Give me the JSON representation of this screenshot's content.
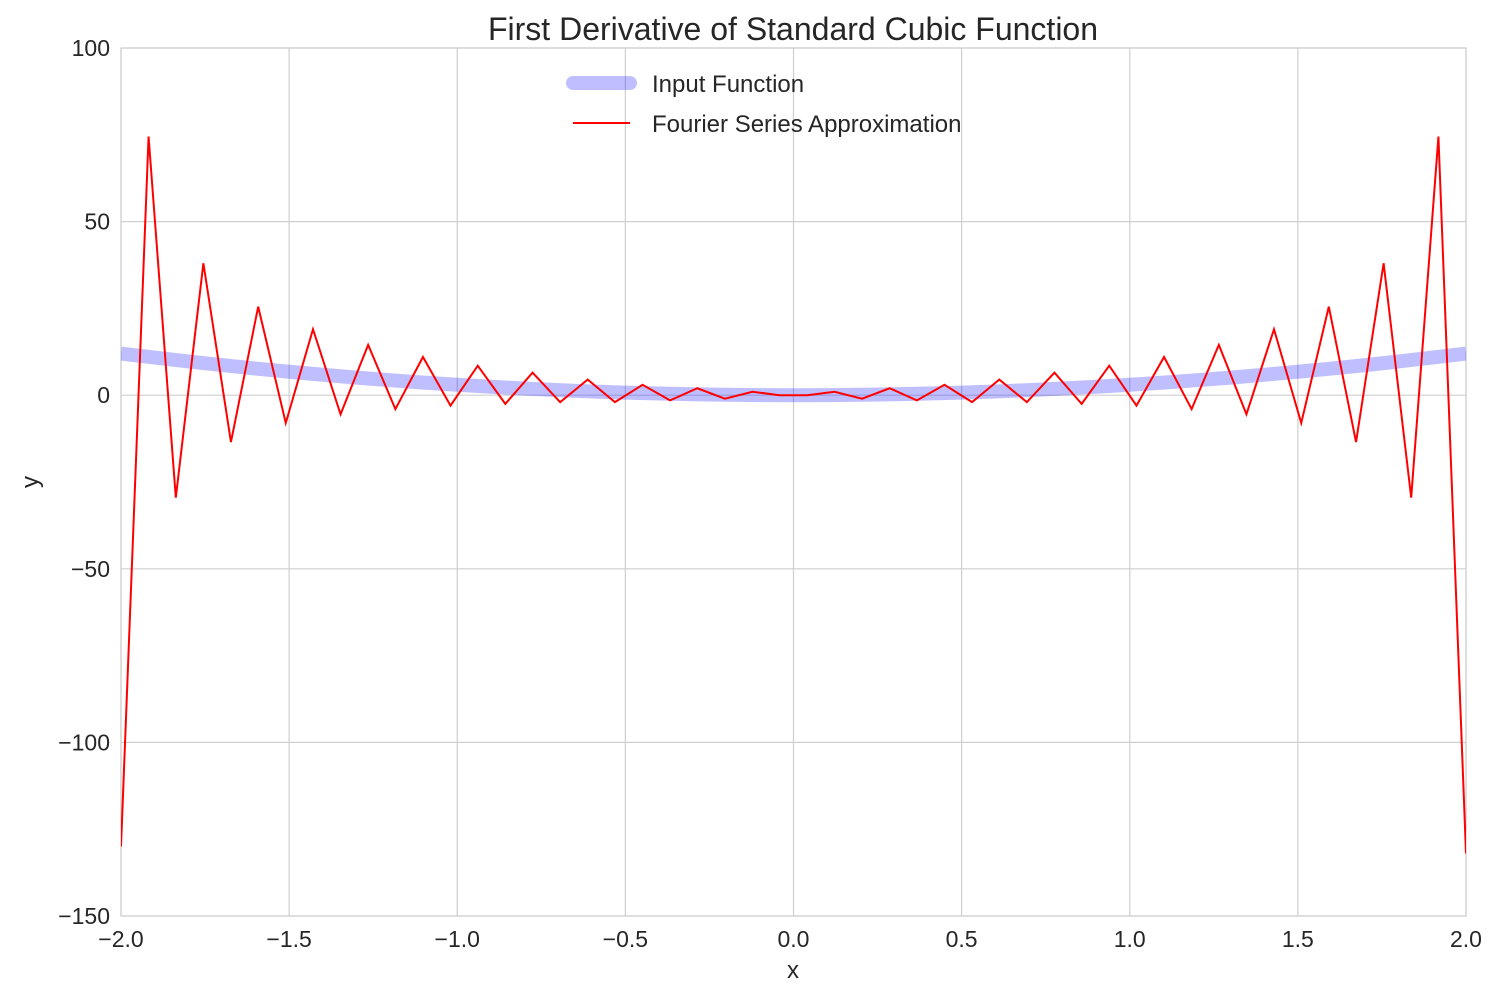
{
  "chart_data": {
    "type": "line",
    "title": "First Derivative of Standard Cubic Function",
    "xlabel": "x",
    "ylabel": "y",
    "xlim": [
      -2.0,
      2.0
    ],
    "ylim": [
      -150,
      100
    ],
    "xticks": [
      -2.0,
      -1.5,
      -1.0,
      -0.5,
      0.0,
      0.5,
      1.0,
      1.5,
      2.0
    ],
    "xtick_labels": [
      "−2.0",
      "−1.5",
      "−1.0",
      "−0.5",
      "0.0",
      "0.5",
      "1.0",
      "1.5",
      "2.0"
    ],
    "yticks": [
      -150,
      -100,
      -50,
      0,
      50,
      100
    ],
    "ytick_labels": [
      "−150",
      "−100",
      "−50",
      "0",
      "50",
      "100"
    ],
    "grid": true,
    "legend_position": "upper center",
    "series": [
      {
        "name": "Input Function",
        "color": "#0000ff",
        "opacity": 0.25,
        "style": "thick",
        "x": [
          -2.0,
          -1.9,
          -1.8,
          -1.7,
          -1.6,
          -1.5,
          -1.4,
          -1.3,
          -1.2,
          -1.1,
          -1.0,
          -0.9,
          -0.8,
          -0.7,
          -0.6,
          -0.5,
          -0.4,
          -0.3,
          -0.2,
          -0.1,
          0.0,
          0.1,
          0.2,
          0.3,
          0.4,
          0.5,
          0.6,
          0.7,
          0.8,
          0.9,
          1.0,
          1.1,
          1.2,
          1.3,
          1.4,
          1.5,
          1.6,
          1.7,
          1.8,
          1.9,
          2.0
        ],
        "y": [
          12.0,
          10.83,
          9.72,
          8.67,
          7.68,
          6.75,
          5.88,
          5.07,
          4.32,
          3.63,
          3.0,
          2.43,
          1.92,
          1.47,
          1.08,
          0.75,
          0.48,
          0.27,
          0.12,
          0.03,
          0.0,
          0.03,
          0.12,
          0.27,
          0.48,
          0.75,
          1.08,
          1.47,
          1.92,
          2.43,
          3.0,
          3.63,
          4.32,
          5.07,
          5.88,
          6.75,
          7.68,
          8.67,
          9.72,
          10.83,
          12.0
        ]
      },
      {
        "name": "Fourier Series Approximation",
        "color": "#ff0000",
        "style": "thin",
        "x": [
          -2.0,
          -1.918,
          -1.837,
          -1.755,
          -1.673,
          -1.592,
          -1.51,
          -1.429,
          -1.347,
          -1.265,
          -1.184,
          -1.102,
          -1.02,
          -0.939,
          -0.857,
          -0.776,
          -0.694,
          -0.612,
          -0.531,
          -0.449,
          -0.367,
          -0.286,
          -0.204,
          -0.122,
          -0.041,
          0.041,
          0.122,
          0.204,
          0.286,
          0.367,
          0.449,
          0.531,
          0.612,
          0.694,
          0.776,
          0.857,
          0.939,
          1.02,
          1.102,
          1.184,
          1.265,
          1.347,
          1.429,
          1.51,
          1.592,
          1.673,
          1.755,
          1.837,
          1.918,
          2.0
        ],
        "y": [
          -130,
          74.5,
          -29.5,
          38,
          -13.5,
          25.5,
          -8,
          19,
          -5.5,
          14.5,
          -4,
          11,
          -3,
          8.5,
          -2.5,
          6.5,
          -2,
          4.5,
          -2,
          3,
          -1.5,
          2,
          -1,
          1,
          0,
          0,
          1,
          -1,
          2,
          -1.5,
          3,
          -2,
          4.5,
          -2,
          6.5,
          -2.5,
          8.5,
          -3,
          11,
          -4,
          14.5,
          -5.5,
          19,
          -8,
          25.5,
          -13.5,
          38,
          -29.5,
          74.5,
          -132
        ]
      }
    ]
  }
}
